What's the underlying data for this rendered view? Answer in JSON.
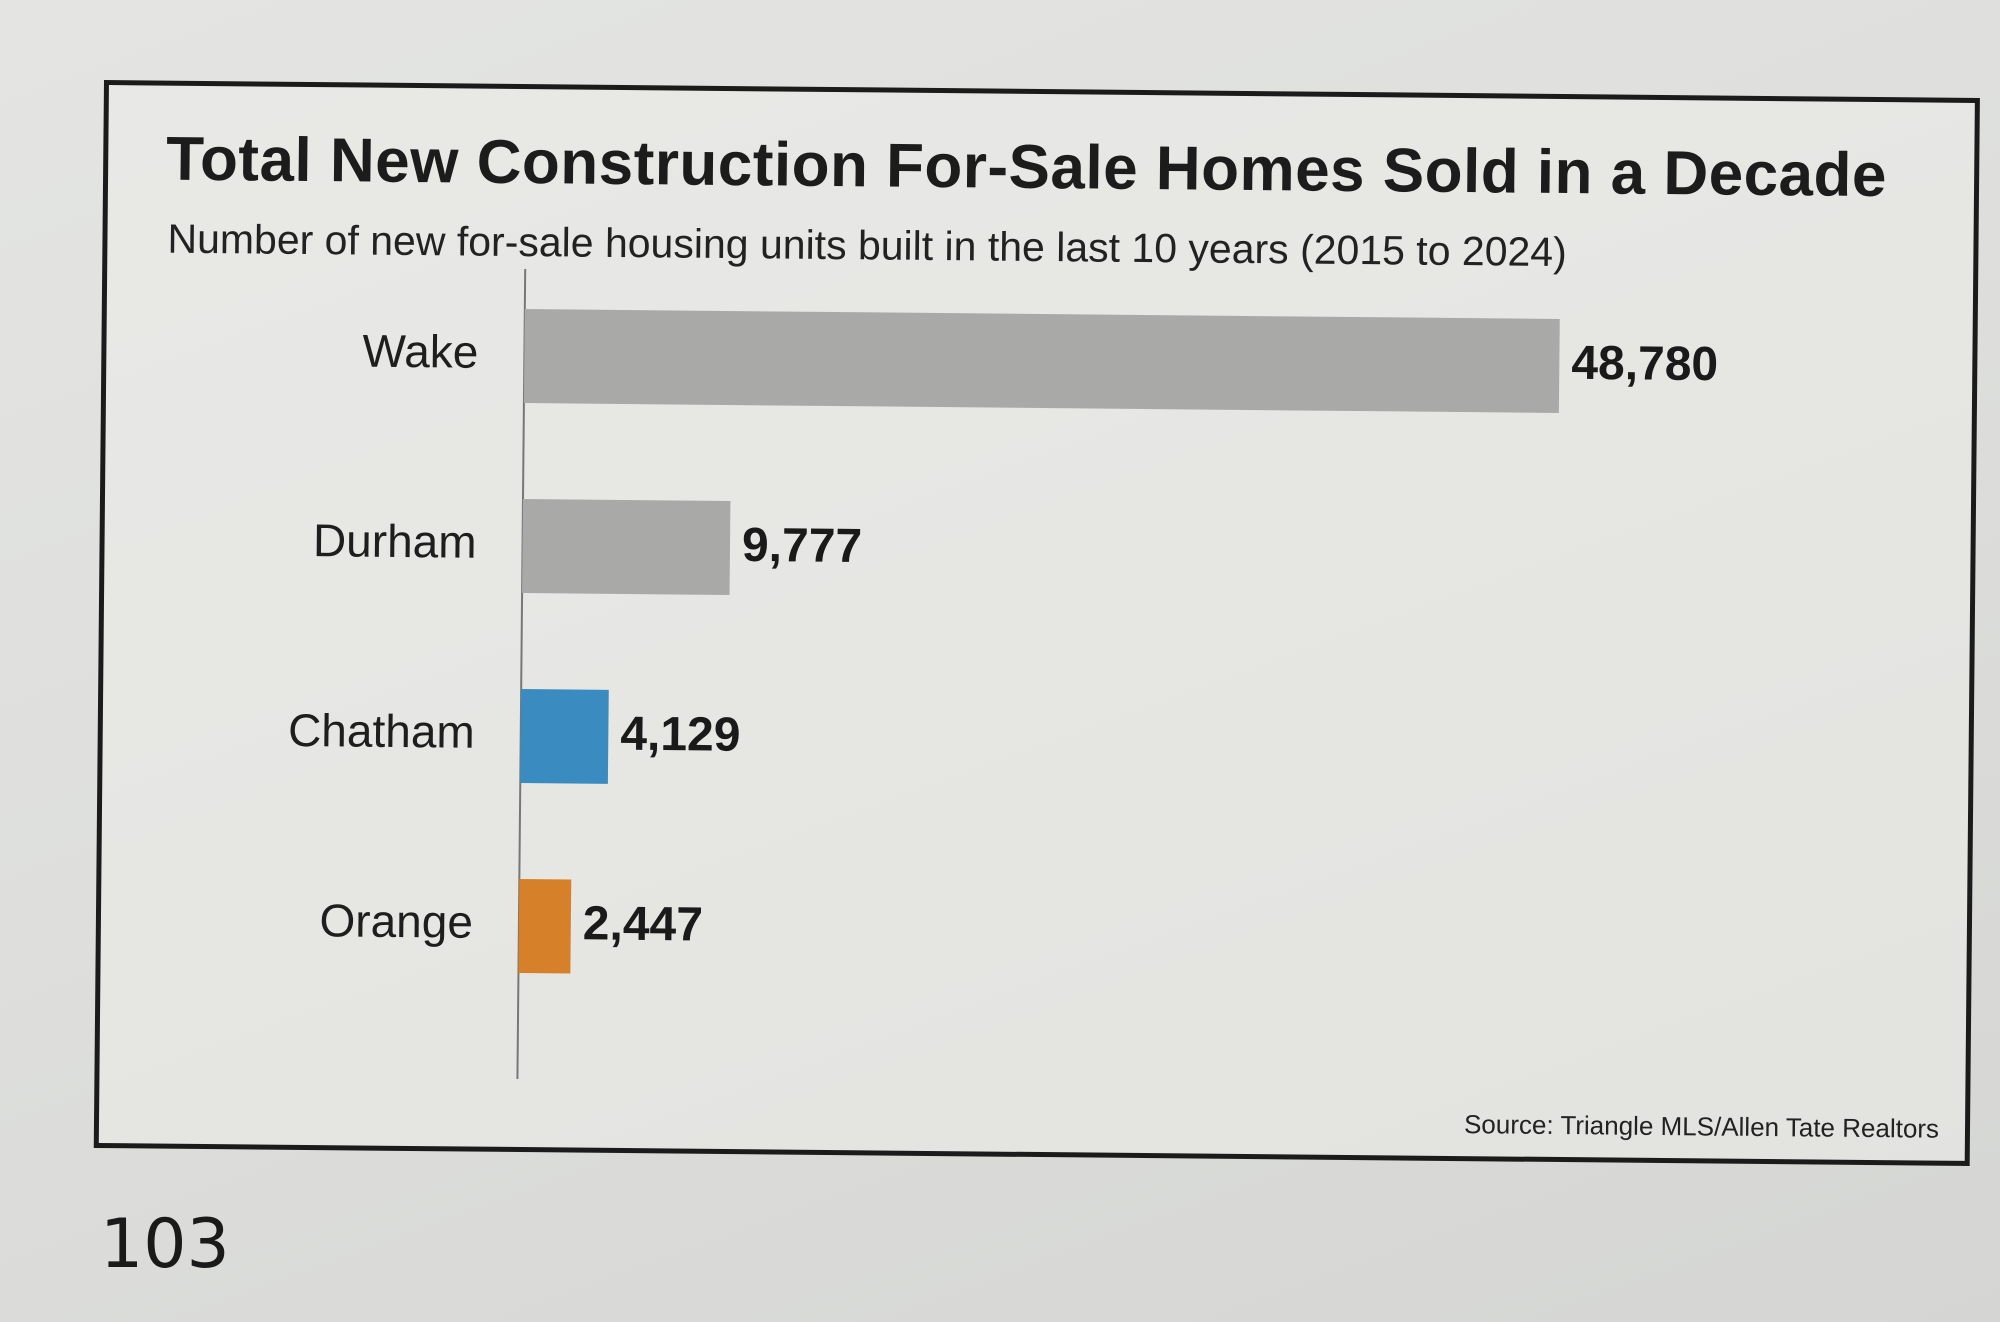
{
  "page": {
    "number": "103"
  },
  "chart_data": {
    "type": "bar",
    "orientation": "horizontal",
    "title": "Total New Construction For-Sale Homes Sold in a Decade",
    "subtitle": "Number of new for-sale housing units built in the last 10 years (2015 to 2024)",
    "categories": [
      "Wake",
      "Durham",
      "Chatham",
      "Orange"
    ],
    "values": [
      48780,
      9777,
      4129,
      2447
    ],
    "value_labels": [
      "48,780",
      "9,777",
      "4,129",
      "2,447"
    ],
    "colors": [
      "#a9a9a7",
      "#a9a9a7",
      "#3a8cc0",
      "#d6802a"
    ],
    "xlim": [
      0,
      48780
    ],
    "grid": false,
    "legend": "none",
    "source": "Source: Triangle MLS/Allen Tate Realtors"
  }
}
